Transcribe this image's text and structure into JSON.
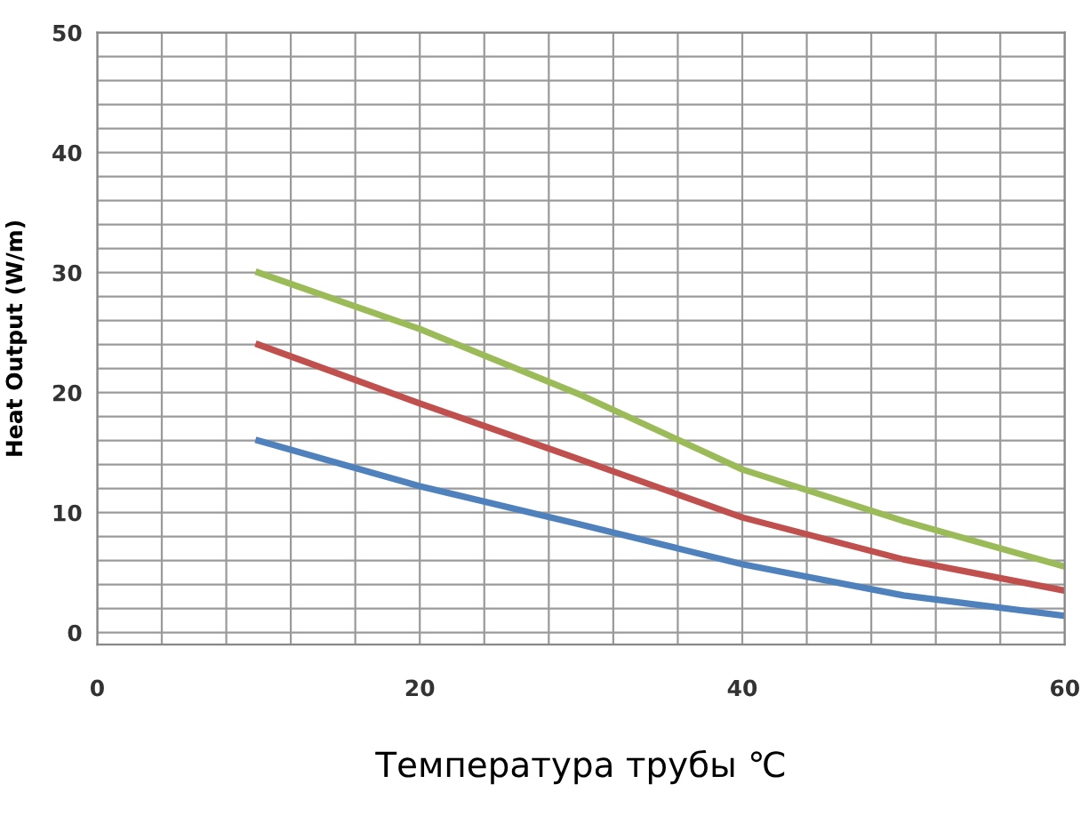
{
  "chart_data": {
    "type": "line",
    "xlabel": "Температура трубы ℃",
    "ylabel": "Heat Output (W/m)",
    "x": [
      10,
      20,
      30,
      40,
      50,
      60
    ],
    "series": [
      {
        "color": "#9bbb59",
        "values": [
          30,
          25.3,
          19.8,
          13.6,
          9.3,
          5.5
        ]
      },
      {
        "color": "#c0504d",
        "values": [
          24,
          19.1,
          14.4,
          9.6,
          6.1,
          3.5
        ]
      },
      {
        "color": "#4f81bd",
        "values": [
          16,
          12.2,
          9.0,
          5.7,
          3.1,
          1.4
        ]
      }
    ],
    "xlim": [
      0,
      60
    ],
    "xticks": [
      0,
      20,
      40,
      60
    ],
    "ylim": [
      -1,
      50
    ],
    "yticks": [
      0,
      10,
      20,
      30,
      40,
      50
    ],
    "grid": true,
    "marker": "none",
    "line_style": "solid",
    "legend": false
  }
}
